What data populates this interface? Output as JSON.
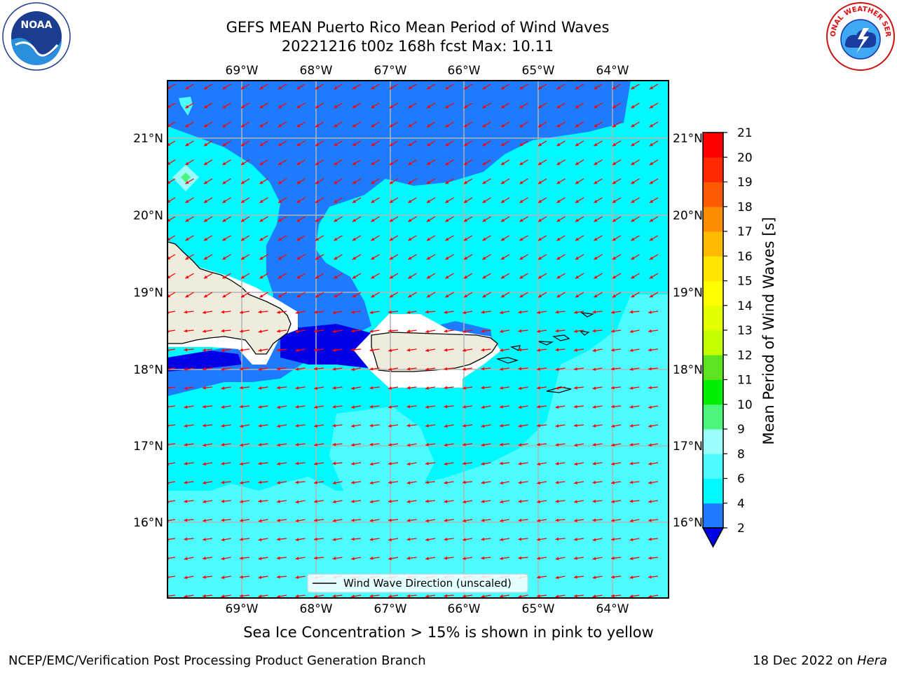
{
  "title": {
    "line1": "GEFS MEAN Puerto Rico Mean Period of Wind Waves",
    "line2": "20221216 t00z 168h fcst   Max: 10.11"
  },
  "map": {
    "lon_labels": [
      "69°W",
      "68°W",
      "67°W",
      "66°W",
      "65°W",
      "64°W"
    ],
    "lat_labels": [
      "21°N",
      "20°N",
      "19°N",
      "18°N",
      "17°N",
      "16°N"
    ],
    "legend_label": "Wind Wave Direction (unscaled)",
    "colors": {
      "ocean_dark": "#1e7bff",
      "ocean_mid": "#00f8ff",
      "ocean_light": "#4dfcff",
      "land": "#eeecdc",
      "land_border": "#000000",
      "arrow": "#ff0000",
      "grid": "#b4b4b4"
    }
  },
  "colorbar": {
    "label": "Mean Period of Wind Waves [s]",
    "ticks": [
      "2",
      "4",
      "6",
      "8",
      "9",
      "10",
      "11",
      "12",
      "13",
      "14",
      "15",
      "16",
      "17",
      "18",
      "19",
      "20",
      "21"
    ],
    "colors": [
      "#0000e6",
      "#1e7bff",
      "#00f8ff",
      "#4dfcff",
      "#9bfffc",
      "#4cf57c",
      "#00ee00",
      "#5ee321",
      "#c4ff00",
      "#e3ff00",
      "#ffff00",
      "#ffe500",
      "#ffbb00",
      "#ff8c00",
      "#ff5a00",
      "#ff2a00",
      "#ff0000"
    ]
  },
  "footer": {
    "ice_note": "Sea Ice Concentration > 15% is shown in pink to yellow",
    "credit": "NCEP/EMC/Verification Post Processing Product Generation Branch",
    "date": "18 Dec 2022 on ",
    "host": "Hera"
  },
  "logos": {
    "noaa": "NOAA",
    "nws": "NATIONAL WEATHER SERVICE"
  }
}
